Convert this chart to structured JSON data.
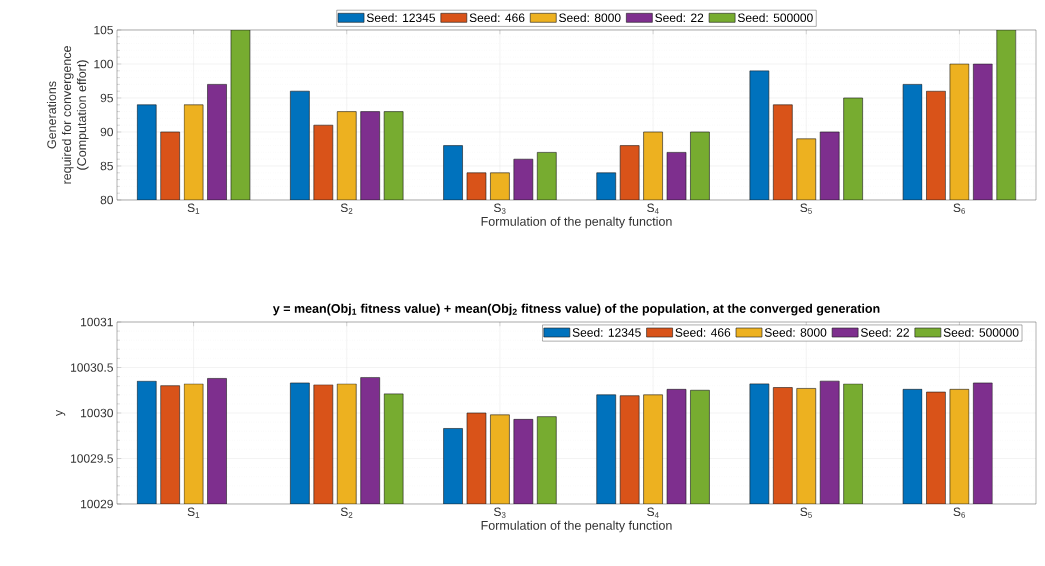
{
  "chart_data": [
    {
      "type": "bar",
      "xlabel": "Formulation of the penalty function",
      "ylabel": "Generations\nrequired for convergence\n(Computation effort)",
      "categories": [
        "S$_{1}$",
        "S$_{2}$",
        "S$_{3}$",
        "S$_{4}$",
        "S$_{5}$",
        "S$_{6}$"
      ],
      "series": [
        {
          "name": "Seed: 12345",
          "color": "#0072bd",
          "values": [
            94,
            96,
            88,
            84,
            99,
            97
          ]
        },
        {
          "name": "Seed: 466",
          "color": "#d95319",
          "values": [
            90,
            91,
            84,
            88,
            94,
            96
          ]
        },
        {
          "name": "Seed: 8000",
          "color": "#edb120",
          "values": [
            94,
            93,
            84,
            90,
            89,
            100
          ]
        },
        {
          "name": "Seed: 22",
          "color": "#7e2f8e",
          "values": [
            97,
            93,
            86,
            87,
            90,
            100
          ]
        },
        {
          "name": "Seed: 500000",
          "color": "#77ac30",
          "values": [
            105,
            93,
            87,
            90,
            95,
            105
          ]
        }
      ],
      "ylim": [
        80,
        105
      ],
      "yticks": [
        80,
        85,
        90,
        95,
        100,
        105
      ],
      "grid": true,
      "legend": "top"
    },
    {
      "type": "bar",
      "title": "y = mean(Obj$_{1}$ fitness value) + mean(Obj$_{2}$ fitness value) of the population, at the converged generation",
      "xlabel": "Formulation of the penalty function",
      "ylabel": "y",
      "categories": [
        "S$_{1}$",
        "S$_{2}$",
        "S$_{3}$",
        "S$_{4}$",
        "S$_{5}$",
        "S$_{6}$"
      ],
      "series": [
        {
          "name": "Seed: 12345",
          "color": "#0072bd",
          "values": [
            10030.35,
            10030.33,
            10029.83,
            10030.2,
            10030.32,
            10030.26
          ]
        },
        {
          "name": "Seed: 466",
          "color": "#d95319",
          "values": [
            10030.3,
            10030.31,
            10030.0,
            10030.19,
            10030.28,
            10030.23
          ]
        },
        {
          "name": "Seed: 8000",
          "color": "#edb120",
          "values": [
            10030.32,
            10030.32,
            10029.98,
            10030.2,
            10030.27,
            10030.26
          ]
        },
        {
          "name": "Seed: 22",
          "color": "#7e2f8e",
          "values": [
            10030.38,
            10030.39,
            10029.93,
            10030.26,
            10030.35,
            10030.33
          ]
        },
        {
          "name": "Seed: 500000",
          "color": "#77ac30",
          "values": [
            null,
            10030.21,
            10029.96,
            10030.25,
            10030.32,
            null
          ]
        }
      ],
      "ylim": [
        10029,
        10031
      ],
      "yticks": [
        10029,
        10029.5,
        10030,
        10030.5,
        10031
      ],
      "grid": true,
      "legend": "top right"
    }
  ]
}
